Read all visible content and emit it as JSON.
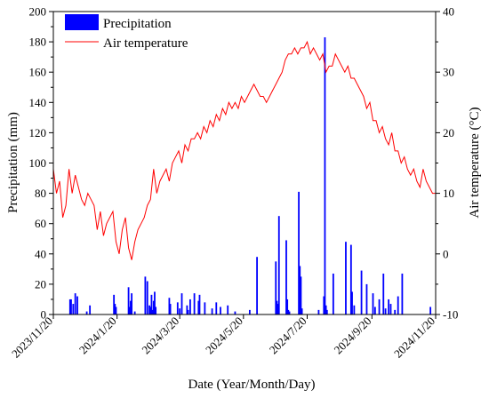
{
  "chart_data": {
    "type": "bar+line",
    "xlabel": "Date (Year/Month/Day)",
    "ylabel_left": "Precipitation (mm)",
    "ylabel_right": "Air temperature (°C)",
    "ylim_left": [
      0,
      200
    ],
    "ylim_right": [
      -10,
      40
    ],
    "y_ticks_left": [
      0,
      20,
      40,
      60,
      80,
      100,
      120,
      140,
      160,
      180,
      200
    ],
    "y_ticks_right": [
      -10,
      0,
      10,
      20,
      30,
      40
    ],
    "x_range": [
      "2023-11-20",
      "2024-11-20"
    ],
    "x_ticks": [
      "2023/11/20",
      "2024/1/20",
      "2024/3/20",
      "2024/5/20",
      "2024/7/20",
      "2024/9/20",
      "2024/11/20"
    ],
    "legend_position": "top-left",
    "grid": false,
    "series": [
      {
        "name": "Precipitation",
        "type": "bar",
        "axis": "left",
        "color": "#0000ff",
        "x": [
          "2023-12-06",
          "2023-12-07",
          "2023-12-09",
          "2023-12-11",
          "2023-12-13",
          "2023-12-22",
          "2023-12-25",
          "2024-01-17",
          "2024-01-18",
          "2024-01-19",
          "2024-01-31",
          "2024-02-01",
          "2024-02-02",
          "2024-02-03",
          "2024-02-06",
          "2024-02-16",
          "2024-02-18",
          "2024-02-20",
          "2024-02-21",
          "2024-02-22",
          "2024-02-23",
          "2024-02-24",
          "2024-02-25",
          "2024-02-26",
          "2024-03-10",
          "2024-03-11",
          "2024-03-18",
          "2024-03-20",
          "2024-03-22",
          "2024-03-27",
          "2024-03-28",
          "2024-03-30",
          "2024-04-03",
          "2024-04-07",
          "2024-04-08",
          "2024-04-13",
          "2024-04-20",
          "2024-04-24",
          "2024-04-28",
          "2024-05-05",
          "2024-05-12",
          "2024-05-26",
          "2024-06-02",
          "2024-06-20",
          "2024-06-21",
          "2024-06-22",
          "2024-06-23",
          "2024-06-30",
          "2024-07-01",
          "2024-07-02",
          "2024-07-03",
          "2024-07-12",
          "2024-07-13",
          "2024-07-14",
          "2024-07-15",
          "2024-07-31",
          "2024-08-05",
          "2024-08-06",
          "2024-08-07",
          "2024-08-08",
          "2024-08-14",
          "2024-08-26",
          "2024-08-31",
          "2024-09-01",
          "2024-09-03",
          "2024-09-10",
          "2024-09-15",
          "2024-09-21",
          "2024-09-23",
          "2024-09-27",
          "2024-10-01",
          "2024-10-03",
          "2024-10-06",
          "2024-10-08",
          "2024-10-12",
          "2024-10-15",
          "2024-10-19",
          "2024-11-15"
        ],
        "values": [
          10,
          10,
          7,
          14,
          12,
          2,
          6,
          13,
          7,
          5,
          18,
          5,
          9,
          14,
          2,
          25,
          22,
          6,
          5,
          13,
          3,
          9,
          15,
          5,
          11,
          7,
          8,
          4,
          14,
          6,
          3,
          10,
          14,
          9,
          13,
          8,
          4,
          8,
          5,
          6,
          2,
          3,
          38,
          35,
          9,
          7,
          65,
          49,
          10,
          3,
          2,
          81,
          32,
          25,
          4,
          3,
          12,
          183,
          6,
          3,
          27,
          48,
          46,
          15,
          6,
          29,
          20,
          14,
          5,
          10,
          27,
          4,
          10,
          7,
          3,
          12,
          27,
          5
        ]
      },
      {
        "name": "Air temperature",
        "type": "line",
        "axis": "right",
        "color": "#ff0000",
        "x": [
          "2023-11-20",
          "2023-11-23",
          "2023-11-26",
          "2023-11-29",
          "2023-12-02",
          "2023-12-05",
          "2023-12-08",
          "2023-12-11",
          "2023-12-14",
          "2023-12-17",
          "2023-12-20",
          "2023-12-23",
          "2023-12-26",
          "2023-12-29",
          "2024-01-01",
          "2024-01-04",
          "2024-01-07",
          "2024-01-10",
          "2024-01-13",
          "2024-01-16",
          "2024-01-19",
          "2024-01-22",
          "2024-01-25",
          "2024-01-28",
          "2024-01-31",
          "2024-02-03",
          "2024-02-06",
          "2024-02-09",
          "2024-02-12",
          "2024-02-15",
          "2024-02-18",
          "2024-02-21",
          "2024-02-24",
          "2024-02-27",
          "2024-03-01",
          "2024-03-04",
          "2024-03-07",
          "2024-03-10",
          "2024-03-13",
          "2024-03-16",
          "2024-03-19",
          "2024-03-22",
          "2024-03-25",
          "2024-03-28",
          "2024-03-31",
          "2024-04-03",
          "2024-04-06",
          "2024-04-09",
          "2024-04-12",
          "2024-04-15",
          "2024-04-18",
          "2024-04-21",
          "2024-04-24",
          "2024-04-27",
          "2024-04-30",
          "2024-05-03",
          "2024-05-06",
          "2024-05-09",
          "2024-05-12",
          "2024-05-15",
          "2024-05-18",
          "2024-05-21",
          "2024-05-24",
          "2024-05-27",
          "2024-05-30",
          "2024-06-02",
          "2024-06-05",
          "2024-06-08",
          "2024-06-11",
          "2024-06-14",
          "2024-06-17",
          "2024-06-20",
          "2024-06-23",
          "2024-06-26",
          "2024-06-29",
          "2024-07-02",
          "2024-07-05",
          "2024-07-08",
          "2024-07-11",
          "2024-07-14",
          "2024-07-17",
          "2024-07-20",
          "2024-07-23",
          "2024-07-26",
          "2024-07-29",
          "2024-08-01",
          "2024-08-04",
          "2024-08-07",
          "2024-08-10",
          "2024-08-13",
          "2024-08-16",
          "2024-08-19",
          "2024-08-22",
          "2024-08-25",
          "2024-08-28",
          "2024-08-31",
          "2024-09-03",
          "2024-09-06",
          "2024-09-09",
          "2024-09-12",
          "2024-09-15",
          "2024-09-18",
          "2024-09-21",
          "2024-09-24",
          "2024-09-27",
          "2024-09-30",
          "2024-10-03",
          "2024-10-06",
          "2024-10-09",
          "2024-10-12",
          "2024-10-15",
          "2024-10-18",
          "2024-10-21",
          "2024-10-24",
          "2024-10-27",
          "2024-10-30",
          "2024-11-02",
          "2024-11-05",
          "2024-11-08",
          "2024-11-11",
          "2024-11-14",
          "2024-11-17",
          "2024-11-20"
        ],
        "values": [
          14,
          10,
          12,
          6,
          8,
          14,
          10,
          13,
          11,
          9,
          8,
          10,
          9,
          8,
          4,
          7,
          3,
          5,
          6,
          7,
          2,
          0,
          4,
          6,
          1,
          -1,
          2,
          4,
          5,
          6,
          8,
          9,
          14,
          10,
          12,
          13,
          14,
          12,
          15,
          16,
          17,
          15,
          18,
          17,
          19,
          19,
          20,
          19,
          21,
          20,
          22,
          21,
          23,
          22,
          24,
          23,
          25,
          24,
          25,
          24,
          26,
          25,
          26,
          27,
          28,
          27,
          26,
          26,
          25,
          26,
          27,
          28,
          29,
          30,
          32,
          33,
          33,
          34,
          33,
          34,
          34,
          35,
          33,
          34,
          33,
          32,
          33,
          30,
          31,
          31,
          33,
          32,
          31,
          30,
          31,
          29,
          29,
          28,
          27,
          26,
          24,
          25,
          22,
          22,
          20,
          21,
          19,
          18,
          20,
          17,
          17,
          15,
          16,
          14,
          13,
          14,
          12,
          11,
          14,
          12,
          11,
          10,
          10
        ]
      }
    ]
  }
}
